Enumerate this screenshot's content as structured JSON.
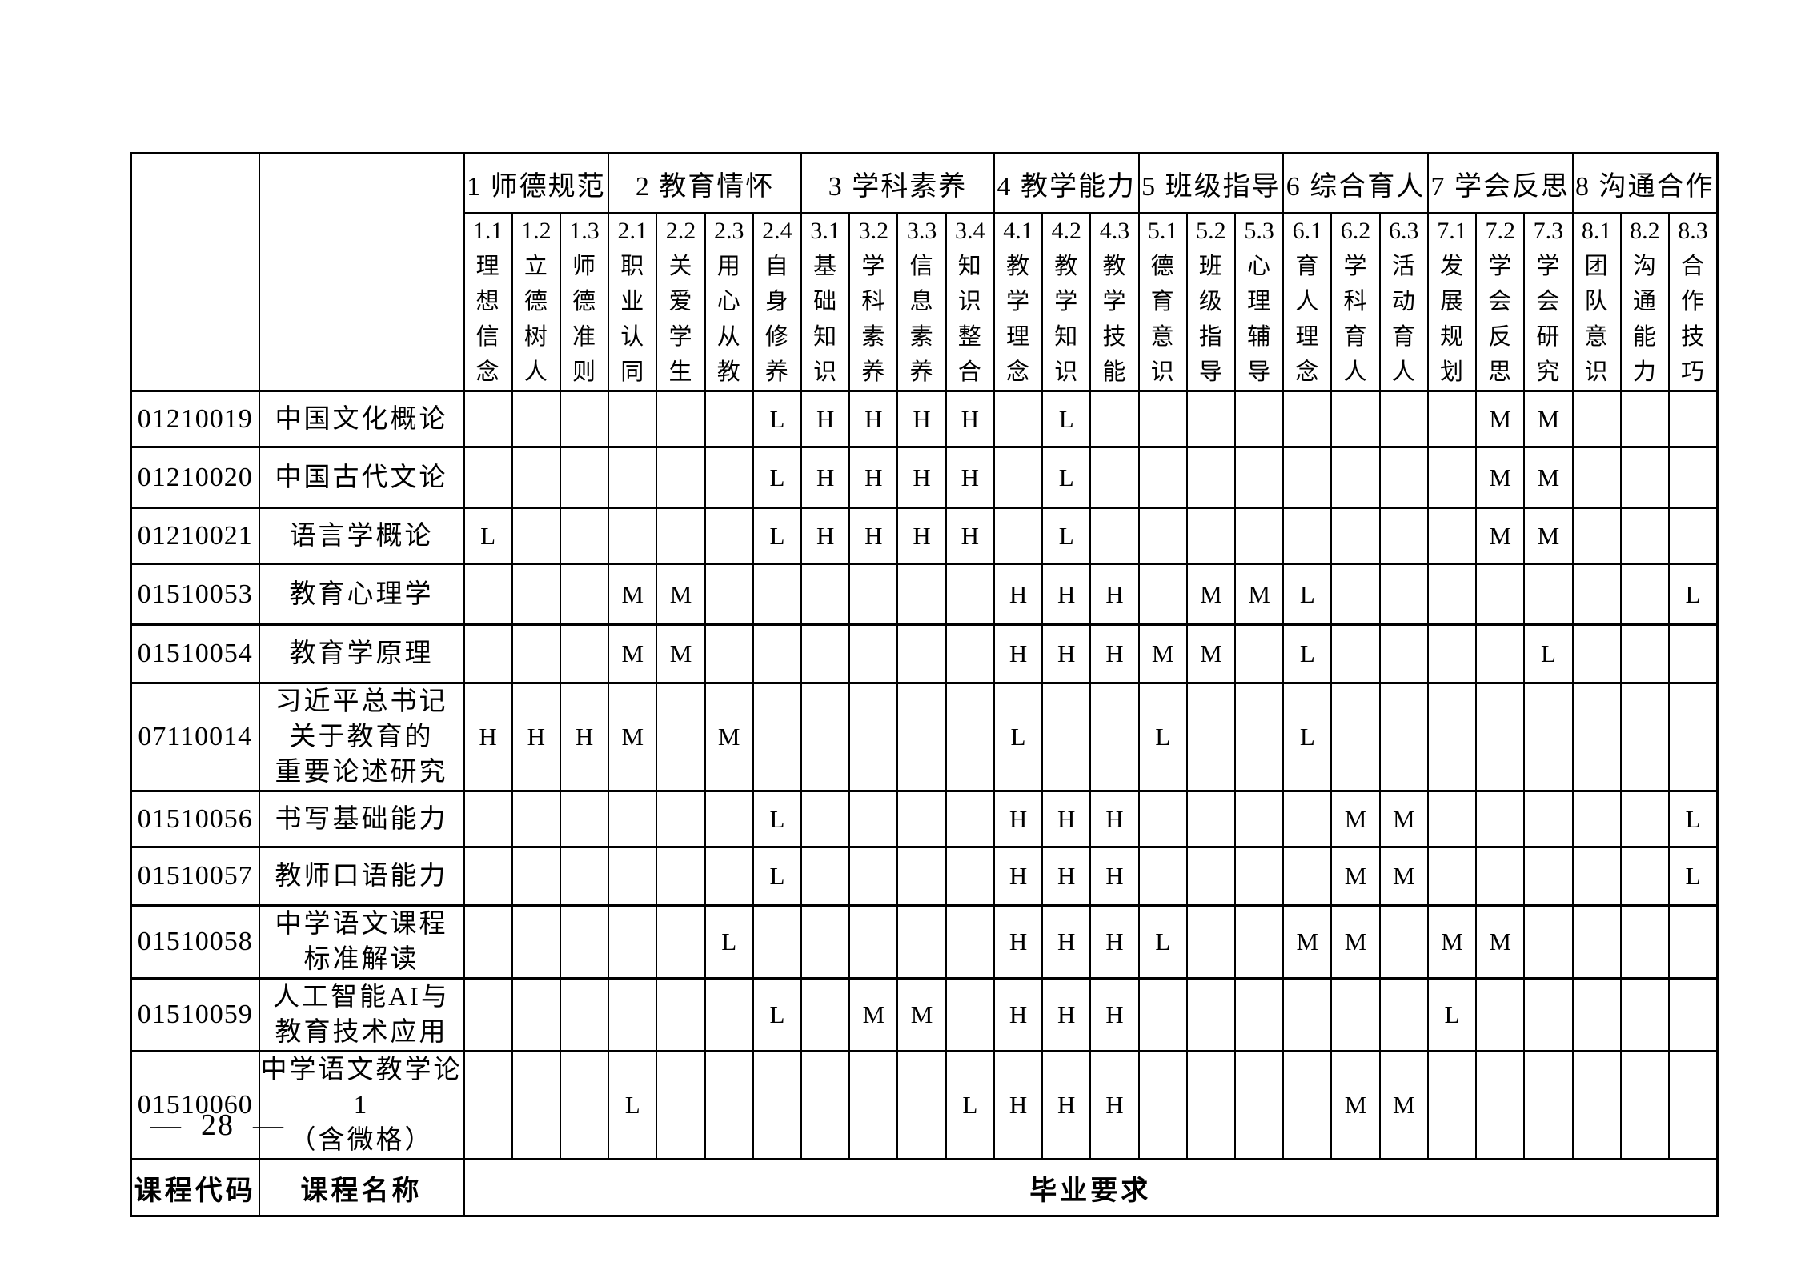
{
  "page": {
    "page_number": "28",
    "page_number_display": "—  28  —"
  },
  "table": {
    "footer": {
      "code_label": "课程代码",
      "name_label": "课程名称",
      "requirement_label": "毕业要求"
    },
    "groups": [
      {
        "label": "1 师德规范",
        "span": 3
      },
      {
        "label": "2 教育情怀",
        "span": 4
      },
      {
        "label": "3 学科素养",
        "span": 4
      },
      {
        "label": "4 教学能力",
        "span": 3
      },
      {
        "label": "5 班级指导",
        "span": 3
      },
      {
        "label": "6 综合育人",
        "span": 3
      },
      {
        "label": "7 学会反思",
        "span": 3
      },
      {
        "label": "8 沟通合作",
        "span": 3
      }
    ],
    "columns": [
      {
        "id": "1.1",
        "line1": "理想",
        "line2": "信念"
      },
      {
        "id": "1.2",
        "line1": "立德",
        "line2": "树人"
      },
      {
        "id": "1.3",
        "line1": "师德",
        "line2": "准则"
      },
      {
        "id": "2.1",
        "line1": "职业",
        "line2": "认同"
      },
      {
        "id": "2.2",
        "line1": "关爱",
        "line2": "学生"
      },
      {
        "id": "2.3",
        "line1": "用心",
        "line2": "从教"
      },
      {
        "id": "2.4",
        "line1": "自身",
        "line2": "修养"
      },
      {
        "id": "3.1",
        "line1": "基础",
        "line2": "知识"
      },
      {
        "id": "3.2",
        "line1": "学科",
        "line2": "素养"
      },
      {
        "id": "3.3",
        "line1": "信息",
        "line2": "素养"
      },
      {
        "id": "3.4",
        "line1": "知识",
        "line2": "整合"
      },
      {
        "id": "4.1",
        "line1": "教学",
        "line2": "理念"
      },
      {
        "id": "4.2",
        "line1": "教学",
        "line2": "知识"
      },
      {
        "id": "4.3",
        "line1": "教学",
        "line2": "技能"
      },
      {
        "id": "5.1",
        "line1": "德育",
        "line2": "意识"
      },
      {
        "id": "5.2",
        "line1": "班级",
        "line2": "指导"
      },
      {
        "id": "5.3",
        "line1": "心理",
        "line2": "辅导"
      },
      {
        "id": "6.1",
        "line1": "育人",
        "line2": "理念"
      },
      {
        "id": "6.2",
        "line1": "学科",
        "line2": "育人"
      },
      {
        "id": "6.3",
        "line1": "活动",
        "line2": "育人"
      },
      {
        "id": "7.1",
        "line1": "发展",
        "line2": "规划"
      },
      {
        "id": "7.2",
        "line1": "学会",
        "line2": "反思"
      },
      {
        "id": "7.3",
        "line1": "学会",
        "line2": "研究"
      },
      {
        "id": "8.1",
        "line1": "团队",
        "line2": "意识"
      },
      {
        "id": "8.2",
        "line1": "沟通",
        "line2": "能力"
      },
      {
        "id": "8.3",
        "line1": "合作",
        "line2": "技巧"
      }
    ],
    "rows": [
      {
        "code": "01210019",
        "name_lines": [
          "中国文化概论"
        ],
        "cells": {
          "2.4": "L",
          "3.1": "H",
          "3.2": "H",
          "3.3": "H",
          "3.4": "H",
          "4.2": "L",
          "7.2": "M",
          "7.3": "M"
        }
      },
      {
        "code": "01210020",
        "name_lines": [
          "中国古代文论"
        ],
        "cells": {
          "2.4": "L",
          "3.1": "H",
          "3.2": "H",
          "3.3": "H",
          "3.4": "H",
          "4.2": "L",
          "7.2": "M",
          "7.3": "M"
        }
      },
      {
        "code": "01210021",
        "name_lines": [
          "语言学概论"
        ],
        "cells": {
          "1.1": "L",
          "2.4": "L",
          "3.1": "H",
          "3.2": "H",
          "3.3": "H",
          "3.4": "H",
          "4.2": "L",
          "7.2": "M",
          "7.3": "M"
        }
      },
      {
        "code": "01510053",
        "name_lines": [
          "教育心理学"
        ],
        "cells": {
          "2.1": "M",
          "2.2": "M",
          "4.1": "H",
          "4.2": "H",
          "4.3": "H",
          "5.2": "M",
          "5.3": "M",
          "6.1": "L",
          "8.3": "L"
        }
      },
      {
        "code": "01510054",
        "name_lines": [
          "教育学原理"
        ],
        "cells": {
          "2.1": "M",
          "2.2": "M",
          "4.1": "H",
          "4.2": "H",
          "4.3": "H",
          "5.1": "M",
          "5.2": "M",
          "6.1": "L",
          "7.3": "L"
        }
      },
      {
        "code": "07110014",
        "name_lines": [
          "习近平总书记",
          "关于教育的",
          "重要论述研究"
        ],
        "cells": {
          "1.1": "H",
          "1.2": "H",
          "1.3": "H",
          "2.1": "M",
          "2.3": "M",
          "4.1": "L",
          "5.1": "L",
          "6.1": "L"
        }
      },
      {
        "code": "01510056",
        "name_lines": [
          "书写基础能力"
        ],
        "cells": {
          "2.4": "L",
          "4.1": "H",
          "4.2": "H",
          "4.3": "H",
          "6.2": "M",
          "6.3": "M",
          "8.3": "L"
        }
      },
      {
        "code": "01510057",
        "name_lines": [
          "教师口语能力"
        ],
        "cells": {
          "2.4": "L",
          "4.1": "H",
          "4.2": "H",
          "4.3": "H",
          "6.2": "M",
          "6.3": "M",
          "8.3": "L"
        }
      },
      {
        "code": "01510058",
        "name_lines": [
          "中学语文课程",
          "标准解读"
        ],
        "cells": {
          "2.3": "L",
          "4.1": "H",
          "4.2": "H",
          "4.3": "H",
          "5.1": "L",
          "6.1": "M",
          "6.2": "M",
          "7.1": "M",
          "7.2": "M"
        }
      },
      {
        "code": "01510059",
        "name_lines": [
          "人工智能AI与",
          "教育技术应用"
        ],
        "cells": {
          "2.4": "L",
          "3.2": "M",
          "3.3": "M",
          "4.1": "H",
          "4.2": "H",
          "4.3": "H",
          "7.1": "L"
        }
      },
      {
        "code": "01510060",
        "name_lines": [
          "中学语文教学论1",
          "（含微格）"
        ],
        "cells": {
          "2.1": "L",
          "3.4": "L",
          "4.1": "H",
          "4.2": "H",
          "4.3": "H",
          "6.2": "M",
          "6.3": "M"
        }
      }
    ]
  }
}
